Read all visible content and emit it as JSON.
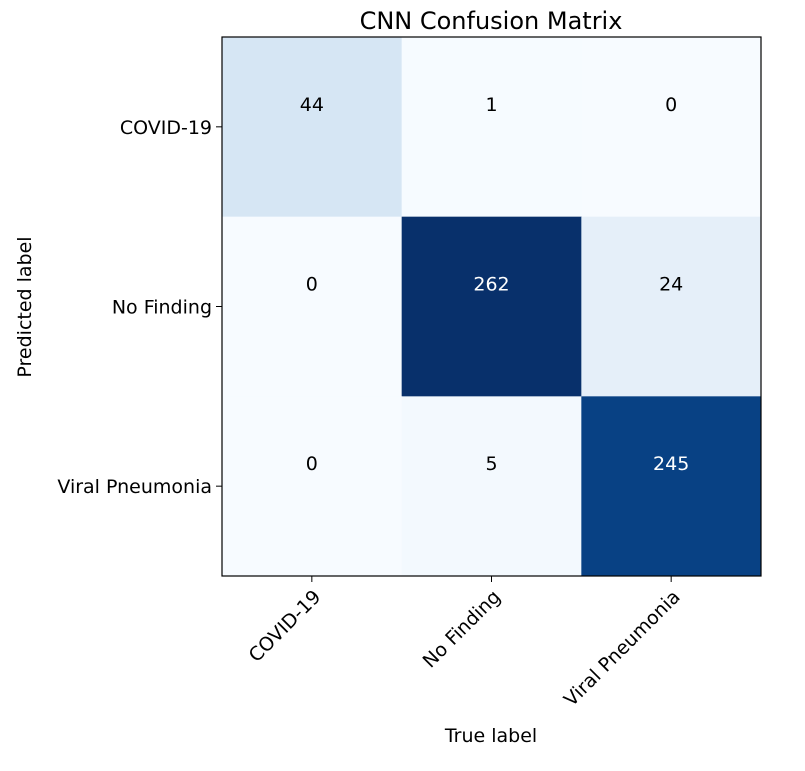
{
  "chart_data": {
    "type": "heatmap",
    "title": "CNN Confusion Matrix",
    "xlabel": "True label",
    "ylabel": "Predicted label",
    "x_categories": [
      "COVID-19",
      "No Finding",
      "Viral Pneumonia"
    ],
    "y_categories": [
      "COVID-19",
      "No Finding",
      "Viral Pneumonia"
    ],
    "values": [
      [
        44,
        1,
        0
      ],
      [
        0,
        262,
        24
      ],
      [
        0,
        5,
        245
      ]
    ],
    "colormap": "Blues",
    "value_range": [
      0,
      262
    ],
    "grid": false,
    "legend": "none"
  }
}
